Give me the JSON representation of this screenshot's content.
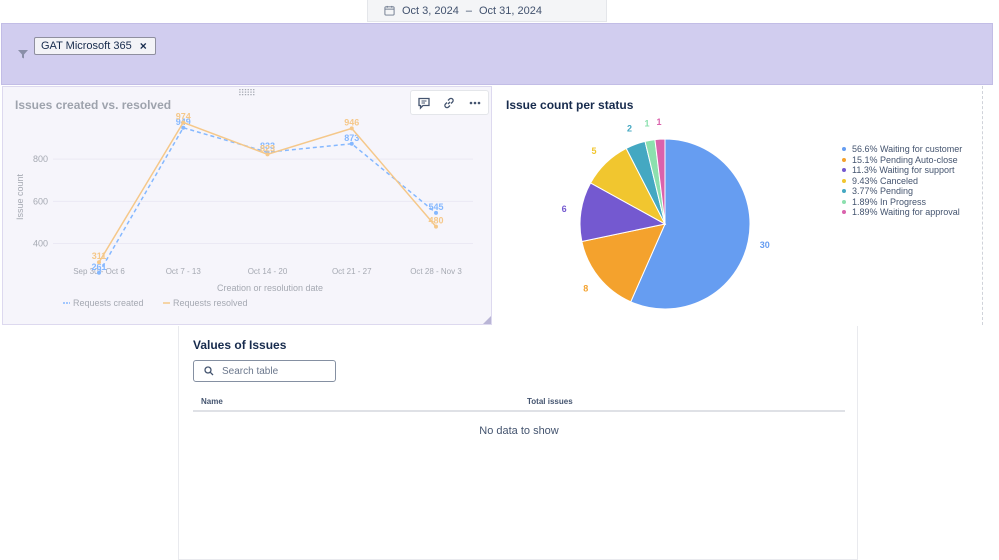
{
  "date_range": {
    "start": "Oct 3, 2024",
    "separator": "–",
    "end": "Oct 31, 2024"
  },
  "filters": {
    "chips": [
      {
        "label": "GAT Microsoft 365"
      }
    ]
  },
  "line_panel": {
    "title": "Issues created vs. resolved",
    "tools": [
      "comment-icon",
      "link-icon",
      "more-icon"
    ]
  },
  "pie_panel": {
    "title": "Issue count per status"
  },
  "table_panel": {
    "title": "Values of Issues",
    "search_placeholder": "Search table",
    "columns": [
      "Name",
      "Total issues"
    ],
    "empty_message": "No data to show"
  },
  "colors": {
    "created": "#85b8ff",
    "resolved": "#f5c88a",
    "filter_bar": "#d1cdef"
  },
  "chart_data": [
    {
      "type": "line",
      "title": "Issues created vs. resolved",
      "xlabel": "Creation or resolution date",
      "ylabel": "Issue count",
      "categories": [
        "Sep 30 - Oct 6",
        "Oct 7 - 13",
        "Oct 14 - 20",
        "Oct 21 - 27",
        "Oct 28 - Nov 3"
      ],
      "yticks": [
        400,
        600,
        800
      ],
      "ylim": [
        260,
        1000
      ],
      "series": [
        {
          "name": "Requests created",
          "values": [
            261,
            949,
            833,
            873,
            545
          ],
          "color": "#85b8ff",
          "dashed": true
        },
        {
          "name": "Requests resolved",
          "values": [
            311,
            974,
            823,
            946,
            480
          ],
          "color": "#f5c88a",
          "dashed": false
        }
      ],
      "legend": "bottom-left",
      "grid": true
    },
    {
      "type": "pie",
      "title": "Issue count per status",
      "slices": [
        {
          "label": "Waiting for customer",
          "value": 30,
          "percent": "56.6%",
          "color": "#669df1"
        },
        {
          "label": "Pending Auto-close",
          "value": 8,
          "percent": "15.1%",
          "color": "#f4a22d"
        },
        {
          "label": "Waiting for support",
          "value": 6,
          "percent": "11.3%",
          "color": "#7459d0"
        },
        {
          "label": "Canceled",
          "value": 5,
          "percent": "9.43%",
          "color": "#f1c62f"
        },
        {
          "label": "Pending",
          "value": 2,
          "percent": "3.77%",
          "color": "#44a8c2"
        },
        {
          "label": "In Progress",
          "value": 1,
          "percent": "1.89%",
          "color": "#8ce0ae"
        },
        {
          "label": "Waiting for approval",
          "value": 1,
          "percent": "1.89%",
          "color": "#da62ac"
        }
      ],
      "legend": "right"
    }
  ]
}
